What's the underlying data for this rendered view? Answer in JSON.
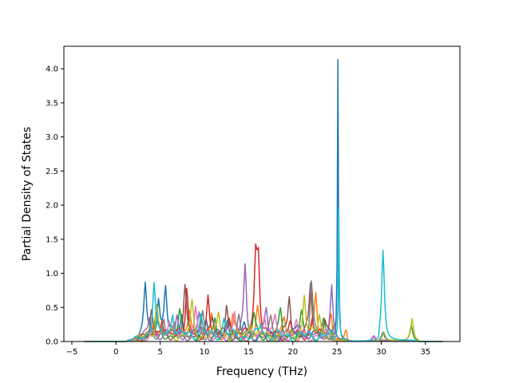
{
  "chart_data": {
    "type": "line",
    "xlabel": "Frequency (THz)",
    "ylabel": "Partial Density of States",
    "xlim": [
      -5.9,
      38.9
    ],
    "ylim": [
      0.0,
      4.33
    ],
    "x_ticks": [
      -5,
      0,
      5,
      10,
      15,
      20,
      25,
      30,
      35
    ],
    "y_ticks": [
      0.0,
      0.5,
      1.0,
      1.5,
      2.0,
      2.5,
      3.0,
      3.5,
      4.0
    ],
    "x_tick_labels": [
      "−5",
      "0",
      "5",
      "10",
      "15",
      "20",
      "25",
      "30",
      "35"
    ],
    "y_tick_labels": [
      "0.0",
      "0.5",
      "1.0",
      "1.5",
      "2.0",
      "2.5",
      "3.0",
      "3.5",
      "4.0"
    ],
    "grid": false,
    "legend": "none",
    "x_range": [
      -3.6,
      37.0
    ],
    "series": [
      {
        "color": "#1f77b4",
        "peaks": [
          [
            3.3,
            0.78
          ],
          [
            4.8,
            0.58
          ],
          [
            5.6,
            0.7
          ],
          [
            7.4,
            0.35
          ],
          [
            10.2,
            0.25
          ],
          [
            12.6,
            0.22
          ],
          [
            14.5,
            0.2
          ],
          [
            20.5,
            0.2
          ],
          [
            25.1,
            4.12
          ],
          [
            30.2,
            0.12
          ]
        ]
      },
      {
        "color": "#ff7f0e",
        "peaks": [
          [
            4.2,
            0.22
          ],
          [
            6.6,
            0.25
          ],
          [
            8.3,
            0.35
          ],
          [
            10.8,
            0.3
          ],
          [
            13.2,
            0.32
          ],
          [
            16.0,
            0.38
          ],
          [
            19.0,
            0.25
          ],
          [
            22.6,
            0.65
          ],
          [
            24.3,
            0.3
          ],
          [
            26.0,
            0.15
          ]
        ]
      },
      {
        "color": "#2ca02c",
        "peaks": [
          [
            4.5,
            0.28
          ],
          [
            7.2,
            0.32
          ],
          [
            11.2,
            0.28
          ],
          [
            15.6,
            0.3
          ],
          [
            18.6,
            0.35
          ],
          [
            21.0,
            0.3
          ],
          [
            23.5,
            0.2
          ],
          [
            33.4,
            0.22
          ]
        ]
      },
      {
        "color": "#d62728",
        "peaks": [
          [
            5.2,
            0.3
          ],
          [
            8.0,
            0.75
          ],
          [
            10.4,
            0.65
          ],
          [
            12.8,
            0.28
          ],
          [
            15.8,
            1.05
          ],
          [
            16.1,
            1.08
          ],
          [
            19.7,
            0.2
          ],
          [
            22.2,
            0.28
          ]
        ]
      },
      {
        "color": "#9467bd",
        "peaks": [
          [
            3.8,
            0.3
          ],
          [
            6.9,
            0.3
          ],
          [
            9.4,
            0.32
          ],
          [
            14.6,
            1.03
          ],
          [
            17.0,
            0.35
          ],
          [
            20.8,
            0.2
          ],
          [
            24.4,
            0.73
          ],
          [
            29.1,
            0.18
          ]
        ]
      },
      {
        "color": "#8c564b",
        "peaks": [
          [
            4.0,
            0.42
          ],
          [
            7.8,
            0.68
          ],
          [
            10.9,
            0.26
          ],
          [
            12.5,
            0.48
          ],
          [
            19.6,
            0.62
          ],
          [
            22.0,
            0.78
          ],
          [
            23.6,
            0.25
          ]
        ]
      },
      {
        "color": "#e377c2",
        "peaks": [
          [
            6.0,
            0.3
          ],
          [
            9.0,
            0.42
          ],
          [
            13.4,
            0.4
          ],
          [
            16.8,
            0.36
          ],
          [
            18.0,
            0.28
          ],
          [
            20.4,
            0.22
          ],
          [
            29.2,
            0.2
          ]
        ]
      },
      {
        "color": "#7f7f7f",
        "peaks": [
          [
            5.4,
            0.28
          ],
          [
            9.8,
            0.35
          ],
          [
            13.9,
            0.3
          ],
          [
            17.5,
            0.22
          ],
          [
            22.1,
            0.8
          ],
          [
            24.7,
            0.25
          ]
        ]
      },
      {
        "color": "#bcbd22",
        "peaks": [
          [
            4.6,
            0.5
          ],
          [
            8.6,
            0.45
          ],
          [
            11.6,
            0.36
          ],
          [
            15.2,
            0.25
          ],
          [
            21.3,
            0.62
          ],
          [
            23.0,
            0.35
          ],
          [
            30.3,
            0.12
          ],
          [
            33.5,
            0.32
          ]
        ]
      },
      {
        "color": "#17becf",
        "peaks": [
          [
            4.3,
            0.8
          ],
          [
            6.4,
            0.38
          ],
          [
            9.6,
            0.3
          ],
          [
            12.2,
            0.25
          ],
          [
            16.4,
            0.2
          ],
          [
            25.2,
            1.93
          ],
          [
            30.2,
            1.32
          ]
        ]
      }
    ]
  }
}
